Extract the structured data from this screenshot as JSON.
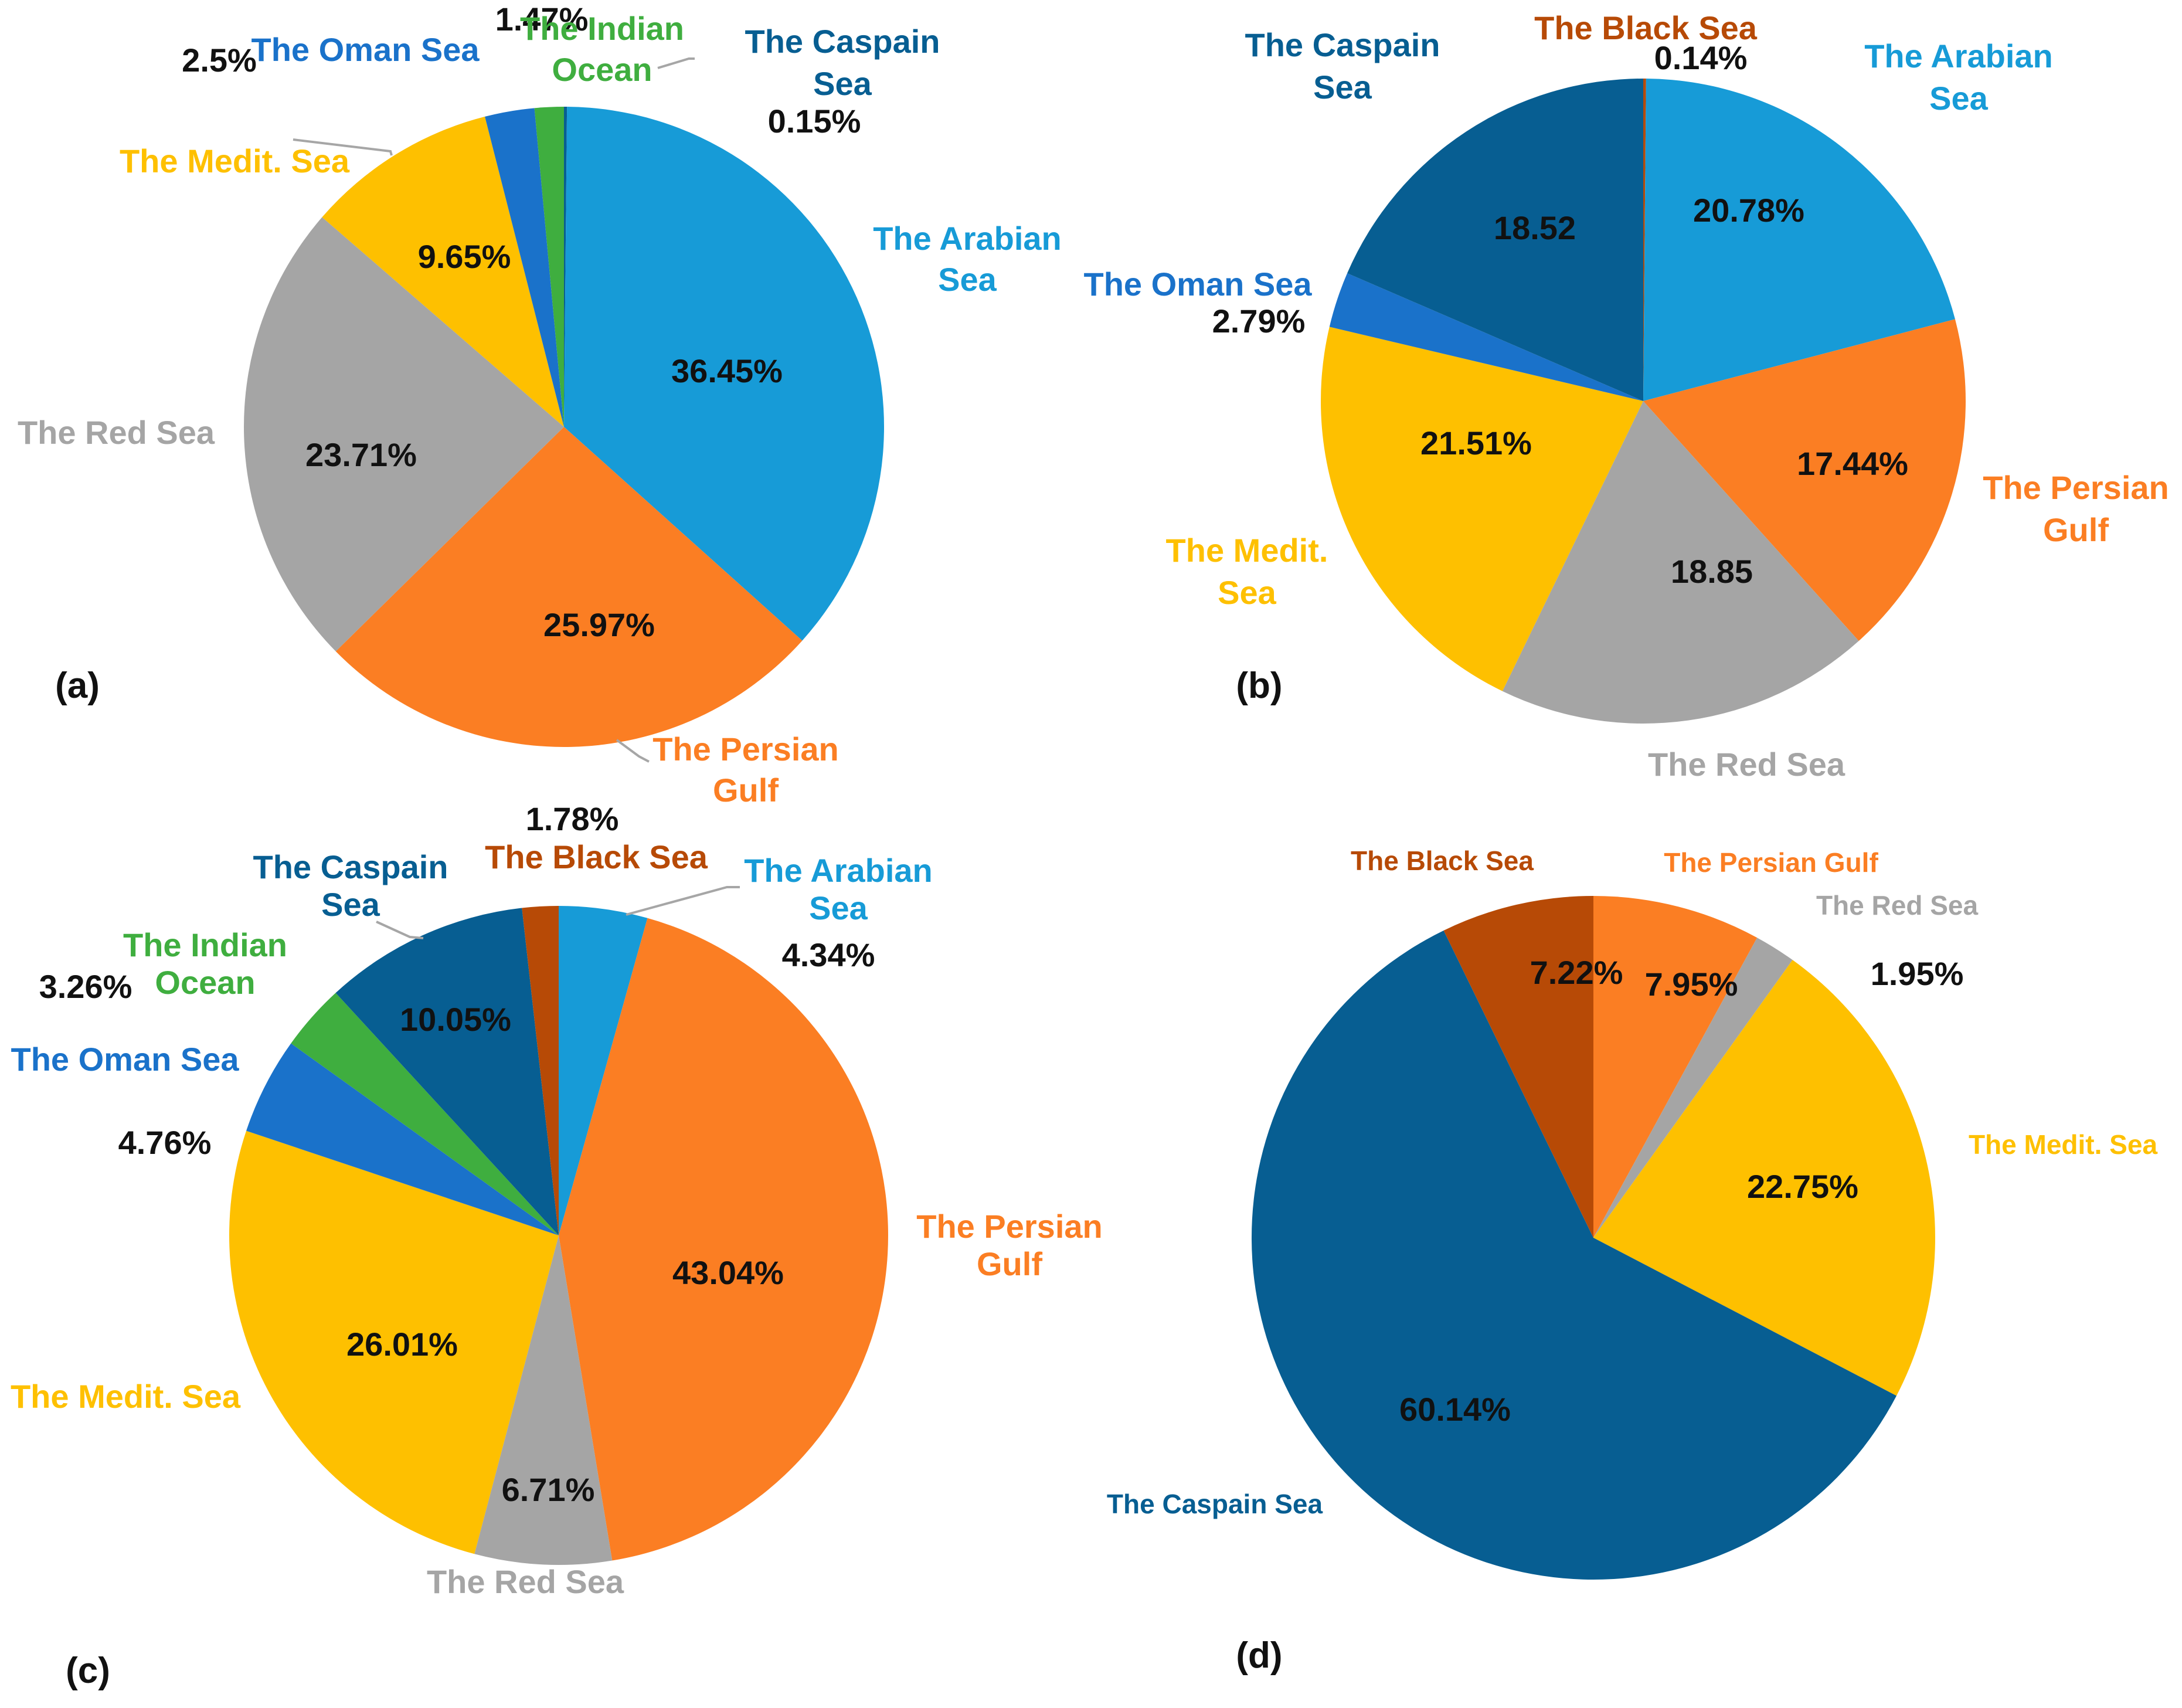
{
  "figure": {
    "colors": {
      "arabian": "#179BD7",
      "persian": "#FB7E23",
      "red": "#A5A5A5",
      "medit": "#FEC000",
      "oman": "#1A72CA",
      "indian": "#3FAE3F",
      "caspian": "#075E92",
      "black": "#B74A06"
    }
  },
  "chart_data": [
    {
      "type": "pie",
      "panel": "(a)",
      "title": "",
      "slices": [
        {
          "key": "caspian",
          "label": "The Caspain Sea",
          "value": 0.15,
          "text": "0.15%"
        },
        {
          "key": "arabian",
          "label": "The Arabian Sea",
          "value": 36.45,
          "text": "36.45%"
        },
        {
          "key": "persian",
          "label": "The Persian Gulf",
          "value": 25.97,
          "text": "25.97%"
        },
        {
          "key": "red",
          "label": "The Red Sea",
          "value": 23.71,
          "text": "23.71%"
        },
        {
          "key": "medit",
          "label": "The Medit. Sea",
          "value": 9.65,
          "text": "9.65%"
        },
        {
          "key": "oman",
          "label": "The Oman Sea",
          "value": 2.5,
          "text": "2.5%"
        },
        {
          "key": "indian",
          "label": "The Indian Ocean",
          "value": 1.47,
          "text": "1.47%"
        }
      ]
    },
    {
      "type": "pie",
      "panel": "(b)",
      "title": "",
      "slices": [
        {
          "key": "black",
          "label": "The Black Sea",
          "value": 0.14,
          "text": "0.14%"
        },
        {
          "key": "arabian",
          "label": "The Arabian Sea",
          "value": 20.78,
          "text": "20.78%"
        },
        {
          "key": "persian",
          "label": "The Persian Gulf",
          "value": 17.44,
          "text": "17.44%"
        },
        {
          "key": "red",
          "label": "The Red Sea",
          "value": 18.85,
          "text": "18.85"
        },
        {
          "key": "medit",
          "label": "The Medit. Sea",
          "value": 21.51,
          "text": "21.51%"
        },
        {
          "key": "oman",
          "label": "The Oman Sea",
          "value": 2.79,
          "text": "2.79%"
        },
        {
          "key": "caspian",
          "label": "The Caspain Sea",
          "value": 18.52,
          "text": "18.52"
        }
      ]
    },
    {
      "type": "pie",
      "panel": "(c)",
      "title": "",
      "slices": [
        {
          "key": "arabian",
          "label": "The Arabian Sea",
          "value": 4.34,
          "text": "4.34%"
        },
        {
          "key": "persian",
          "label": "The Persian Gulf",
          "value": 43.04,
          "text": "43.04%"
        },
        {
          "key": "red",
          "label": "The Red Sea",
          "value": 6.71,
          "text": "6.71%"
        },
        {
          "key": "medit",
          "label": "The Medit. Sea",
          "value": 26.01,
          "text": "26.01%"
        },
        {
          "key": "oman",
          "label": "The Oman Sea",
          "value": 4.76,
          "text": "4.76%"
        },
        {
          "key": "indian",
          "label": "The Indian Ocean",
          "value": 3.26,
          "text": "3.26%"
        },
        {
          "key": "caspian",
          "label": "The Caspain Sea",
          "value": 10.05,
          "text": "10.05%"
        },
        {
          "key": "black",
          "label": "The Black Sea",
          "value": 1.78,
          "text": "1.78%"
        }
      ]
    },
    {
      "type": "pie",
      "panel": "(d)",
      "title": "",
      "slices": [
        {
          "key": "persian",
          "label": "The Persian Gulf",
          "value": 7.95,
          "text": "7.95%"
        },
        {
          "key": "red",
          "label": "The Red Sea",
          "value": 1.95,
          "text": "1.95%"
        },
        {
          "key": "medit",
          "label": "The Medit. Sea",
          "value": 22.75,
          "text": "22.75%"
        },
        {
          "key": "caspian",
          "label": "The Caspain Sea",
          "value": 60.14,
          "text": "60.14%"
        },
        {
          "key": "black",
          "label": "The Black Sea",
          "value": 7.22,
          "text": "7.22%"
        }
      ]
    }
  ],
  "labels": {
    "a": {
      "caspian": [
        "The Caspain",
        "Sea"
      ],
      "arabian": [
        "The Arabian",
        "Sea"
      ],
      "persian": [
        "The Persian",
        "Gulf"
      ],
      "red": [
        "The Red Sea"
      ],
      "medit": [
        "The Medit. Sea"
      ],
      "oman": [
        "The Oman Sea"
      ],
      "indian": [
        "The Indian",
        "Ocean"
      ]
    },
    "b": {
      "black": [
        "The Black Sea"
      ],
      "arabian": [
        "The Arabian",
        "Sea"
      ],
      "persian": [
        "The Persian",
        "Gulf"
      ],
      "red": [
        "The Red Sea"
      ],
      "medit": [
        "The Medit.",
        "Sea"
      ],
      "oman": [
        "The Oman Sea"
      ],
      "caspian": [
        "The Caspain",
        "Sea"
      ]
    },
    "c": {
      "arabian": [
        "The Arabian",
        "Sea"
      ],
      "persian": [
        "The Persian",
        "Gulf"
      ],
      "red": [
        "The Red Sea"
      ],
      "medit": [
        "The Medit. Sea"
      ],
      "oman": [
        "The Oman Sea"
      ],
      "indian": [
        "The Indian",
        "Ocean"
      ],
      "caspian": [
        "The Caspain",
        "Sea"
      ],
      "black": [
        "The Black Sea"
      ]
    },
    "d": {
      "persian": [
        "The Persian Gulf"
      ],
      "red": [
        "The Red Sea"
      ],
      "medit": [
        "The Medit. Sea"
      ],
      "caspian": [
        "The Caspain Sea"
      ],
      "black": [
        "The Black Sea"
      ]
    }
  }
}
